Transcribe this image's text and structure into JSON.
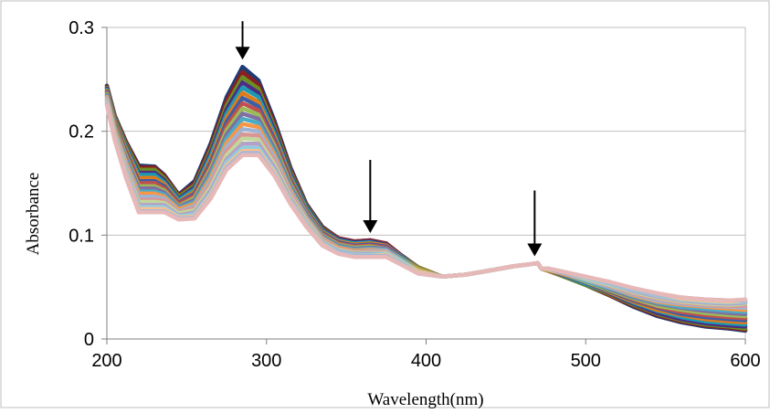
{
  "chart_data": {
    "type": "line",
    "xlabel": "Wavelength(nm)",
    "ylabel": "Absorbance",
    "xlim": [
      200,
      600
    ],
    "ylim": [
      0,
      0.3
    ],
    "x_ticks": [
      "200",
      "300",
      "400",
      "500",
      "600"
    ],
    "y_ticks": [
      "0",
      "0.1",
      "0.2",
      "0.3"
    ],
    "grid": "horizontal",
    "legend": "none",
    "arrows_at_wavelengths": [
      285,
      365,
      468
    ],
    "series_colors": [
      "#1f3b73",
      "#8b1e1e",
      "#6b8e23",
      "#4b2e83",
      "#1a9bb3",
      "#e07b1a",
      "#3c5fa8",
      "#c0504d",
      "#9bbb59",
      "#7f6fa3",
      "#4bacc6",
      "#f79646",
      "#9fb3d4",
      "#d99694",
      "#c3d69b",
      "#b3a2c7",
      "#93cddd",
      "#fac08f",
      "#a5b6d8",
      "#e6b9b8"
    ],
    "x": [
      200,
      205,
      212,
      220,
      230,
      236,
      245,
      255,
      265,
      275,
      285,
      295,
      305,
      315,
      325,
      335,
      345,
      355,
      365,
      375,
      385,
      395,
      410,
      425,
      440,
      455,
      465,
      470,
      472,
      476,
      485,
      500,
      515,
      530,
      545,
      560,
      575,
      590,
      600
    ],
    "series": [
      {
        "values": [
          0.244,
          0.215,
          0.19,
          0.167,
          0.166,
          0.158,
          0.139,
          0.152,
          0.188,
          0.233,
          0.262,
          0.249,
          0.21,
          0.165,
          0.13,
          0.108,
          0.097,
          0.094,
          0.095,
          0.092,
          0.08,
          0.069,
          0.06,
          0.062,
          0.066,
          0.07,
          0.072,
          0.073,
          0.068,
          0.066,
          0.061,
          0.052,
          0.042,
          0.031,
          0.022,
          0.016,
          0.012,
          0.01,
          0.008
        ]
      },
      {
        "values": [
          0.243,
          0.214,
          0.189,
          0.165,
          0.165,
          0.157,
          0.138,
          0.15,
          0.185,
          0.229,
          0.257,
          0.245,
          0.207,
          0.163,
          0.129,
          0.107,
          0.097,
          0.094,
          0.095,
          0.092,
          0.08,
          0.069,
          0.06,
          0.062,
          0.066,
          0.07,
          0.072,
          0.073,
          0.068,
          0.066,
          0.061,
          0.052,
          0.042,
          0.032,
          0.023,
          0.017,
          0.013,
          0.011,
          0.009
        ]
      },
      {
        "values": [
          0.242,
          0.213,
          0.187,
          0.163,
          0.163,
          0.155,
          0.137,
          0.148,
          0.182,
          0.225,
          0.252,
          0.241,
          0.204,
          0.161,
          0.128,
          0.106,
          0.096,
          0.093,
          0.094,
          0.091,
          0.079,
          0.069,
          0.06,
          0.062,
          0.066,
          0.07,
          0.072,
          0.073,
          0.068,
          0.066,
          0.061,
          0.052,
          0.043,
          0.033,
          0.024,
          0.018,
          0.014,
          0.012,
          0.01
        ]
      },
      {
        "values": [
          0.241,
          0.211,
          0.185,
          0.16,
          0.16,
          0.153,
          0.135,
          0.146,
          0.179,
          0.221,
          0.247,
          0.237,
          0.201,
          0.159,
          0.127,
          0.105,
          0.096,
          0.093,
          0.094,
          0.091,
          0.079,
          0.068,
          0.06,
          0.062,
          0.066,
          0.07,
          0.072,
          0.073,
          0.068,
          0.066,
          0.062,
          0.053,
          0.044,
          0.034,
          0.025,
          0.019,
          0.015,
          0.013,
          0.012
        ]
      },
      {
        "values": [
          0.24,
          0.21,
          0.184,
          0.158,
          0.158,
          0.151,
          0.134,
          0.144,
          0.176,
          0.217,
          0.242,
          0.233,
          0.198,
          0.157,
          0.126,
          0.104,
          0.095,
          0.092,
          0.093,
          0.09,
          0.079,
          0.068,
          0.06,
          0.062,
          0.066,
          0.07,
          0.072,
          0.073,
          0.068,
          0.066,
          0.062,
          0.053,
          0.045,
          0.035,
          0.027,
          0.021,
          0.017,
          0.015,
          0.014
        ]
      },
      {
        "values": [
          0.239,
          0.209,
          0.182,
          0.155,
          0.155,
          0.149,
          0.132,
          0.142,
          0.173,
          0.213,
          0.237,
          0.228,
          0.195,
          0.155,
          0.124,
          0.103,
          0.094,
          0.091,
          0.092,
          0.09,
          0.078,
          0.068,
          0.06,
          0.062,
          0.066,
          0.07,
          0.072,
          0.073,
          0.068,
          0.066,
          0.062,
          0.054,
          0.045,
          0.036,
          0.028,
          0.023,
          0.019,
          0.017,
          0.016
        ]
      },
      {
        "values": [
          0.238,
          0.207,
          0.18,
          0.152,
          0.152,
          0.147,
          0.131,
          0.14,
          0.17,
          0.209,
          0.232,
          0.224,
          0.192,
          0.153,
          0.123,
          0.102,
          0.093,
          0.09,
          0.091,
          0.089,
          0.078,
          0.067,
          0.06,
          0.062,
          0.066,
          0.07,
          0.072,
          0.073,
          0.068,
          0.067,
          0.062,
          0.054,
          0.046,
          0.037,
          0.03,
          0.024,
          0.021,
          0.019,
          0.018
        ]
      },
      {
        "values": [
          0.237,
          0.206,
          0.178,
          0.15,
          0.15,
          0.145,
          0.13,
          0.138,
          0.167,
          0.205,
          0.227,
          0.22,
          0.189,
          0.151,
          0.122,
          0.101,
          0.092,
          0.089,
          0.09,
          0.088,
          0.077,
          0.067,
          0.06,
          0.062,
          0.066,
          0.07,
          0.072,
          0.073,
          0.068,
          0.067,
          0.063,
          0.055,
          0.047,
          0.038,
          0.031,
          0.026,
          0.023,
          0.021,
          0.02
        ]
      },
      {
        "values": [
          0.236,
          0.205,
          0.176,
          0.147,
          0.147,
          0.143,
          0.128,
          0.136,
          0.164,
          0.201,
          0.222,
          0.216,
          0.186,
          0.149,
          0.121,
          0.1,
          0.091,
          0.088,
          0.089,
          0.087,
          0.077,
          0.067,
          0.06,
          0.062,
          0.066,
          0.07,
          0.072,
          0.073,
          0.068,
          0.067,
          0.063,
          0.055,
          0.047,
          0.039,
          0.032,
          0.028,
          0.025,
          0.023,
          0.022
        ]
      },
      {
        "values": [
          0.235,
          0.203,
          0.174,
          0.145,
          0.145,
          0.141,
          0.127,
          0.134,
          0.161,
          0.197,
          0.217,
          0.212,
          0.183,
          0.147,
          0.12,
          0.099,
          0.09,
          0.087,
          0.088,
          0.087,
          0.076,
          0.066,
          0.06,
          0.062,
          0.066,
          0.07,
          0.072,
          0.073,
          0.068,
          0.067,
          0.063,
          0.056,
          0.048,
          0.04,
          0.034,
          0.03,
          0.027,
          0.025,
          0.024
        ]
      },
      {
        "values": [
          0.234,
          0.202,
          0.172,
          0.142,
          0.142,
          0.139,
          0.126,
          0.132,
          0.158,
          0.193,
          0.212,
          0.208,
          0.18,
          0.145,
          0.118,
          0.098,
          0.089,
          0.086,
          0.087,
          0.086,
          0.076,
          0.066,
          0.06,
          0.062,
          0.066,
          0.07,
          0.072,
          0.073,
          0.068,
          0.067,
          0.063,
          0.056,
          0.049,
          0.041,
          0.035,
          0.031,
          0.029,
          0.027,
          0.026
        ]
      },
      {
        "values": [
          0.233,
          0.201,
          0.17,
          0.14,
          0.14,
          0.137,
          0.125,
          0.13,
          0.155,
          0.189,
          0.207,
          0.204,
          0.177,
          0.143,
          0.117,
          0.097,
          0.088,
          0.085,
          0.086,
          0.085,
          0.075,
          0.066,
          0.06,
          0.062,
          0.066,
          0.07,
          0.072,
          0.073,
          0.068,
          0.067,
          0.063,
          0.057,
          0.05,
          0.042,
          0.036,
          0.033,
          0.031,
          0.029,
          0.028
        ]
      },
      {
        "values": [
          0.232,
          0.199,
          0.168,
          0.137,
          0.137,
          0.135,
          0.123,
          0.128,
          0.152,
          0.185,
          0.202,
          0.2,
          0.174,
          0.141,
          0.116,
          0.096,
          0.087,
          0.084,
          0.085,
          0.085,
          0.075,
          0.065,
          0.06,
          0.062,
          0.066,
          0.07,
          0.072,
          0.073,
          0.068,
          0.067,
          0.064,
          0.057,
          0.05,
          0.043,
          0.037,
          0.034,
          0.032,
          0.031,
          0.03
        ]
      },
      {
        "values": [
          0.231,
          0.198,
          0.166,
          0.134,
          0.134,
          0.133,
          0.122,
          0.126,
          0.149,
          0.181,
          0.197,
          0.196,
          0.171,
          0.139,
          0.115,
          0.095,
          0.087,
          0.084,
          0.084,
          0.084,
          0.074,
          0.065,
          0.06,
          0.062,
          0.066,
          0.07,
          0.072,
          0.073,
          0.068,
          0.067,
          0.064,
          0.058,
          0.051,
          0.044,
          0.039,
          0.035,
          0.033,
          0.032,
          0.032
        ]
      },
      {
        "values": [
          0.23,
          0.197,
          0.164,
          0.132,
          0.132,
          0.131,
          0.121,
          0.124,
          0.146,
          0.177,
          0.193,
          0.192,
          0.168,
          0.137,
          0.114,
          0.094,
          0.086,
          0.083,
          0.083,
          0.083,
          0.074,
          0.065,
          0.06,
          0.062,
          0.066,
          0.07,
          0.072,
          0.073,
          0.068,
          0.067,
          0.064,
          0.058,
          0.052,
          0.045,
          0.04,
          0.036,
          0.034,
          0.033,
          0.034
        ]
      },
      {
        "values": [
          0.229,
          0.195,
          0.162,
          0.129,
          0.129,
          0.129,
          0.119,
          0.122,
          0.143,
          0.173,
          0.188,
          0.188,
          0.165,
          0.135,
          0.112,
          0.093,
          0.085,
          0.082,
          0.082,
          0.082,
          0.073,
          0.064,
          0.06,
          0.062,
          0.066,
          0.07,
          0.072,
          0.073,
          0.068,
          0.068,
          0.064,
          0.059,
          0.053,
          0.046,
          0.041,
          0.037,
          0.035,
          0.034,
          0.035
        ]
      },
      {
        "values": [
          0.228,
          0.194,
          0.16,
          0.127,
          0.127,
          0.127,
          0.118,
          0.12,
          0.14,
          0.17,
          0.184,
          0.184,
          0.162,
          0.133,
          0.111,
          0.092,
          0.084,
          0.081,
          0.081,
          0.082,
          0.073,
          0.064,
          0.06,
          0.062,
          0.066,
          0.07,
          0.072,
          0.073,
          0.068,
          0.068,
          0.065,
          0.059,
          0.053,
          0.047,
          0.042,
          0.038,
          0.036,
          0.035,
          0.036
        ]
      },
      {
        "values": [
          0.227,
          0.193,
          0.158,
          0.125,
          0.125,
          0.125,
          0.117,
          0.118,
          0.138,
          0.167,
          0.181,
          0.181,
          0.16,
          0.132,
          0.11,
          0.091,
          0.083,
          0.08,
          0.08,
          0.081,
          0.072,
          0.064,
          0.06,
          0.062,
          0.066,
          0.07,
          0.072,
          0.073,
          0.068,
          0.068,
          0.065,
          0.06,
          0.054,
          0.048,
          0.043,
          0.039,
          0.037,
          0.036,
          0.037
        ]
      },
      {
        "values": [
          0.226,
          0.192,
          0.156,
          0.123,
          0.123,
          0.123,
          0.116,
          0.117,
          0.136,
          0.165,
          0.179,
          0.179,
          0.158,
          0.131,
          0.109,
          0.09,
          0.083,
          0.08,
          0.08,
          0.08,
          0.072,
          0.063,
          0.06,
          0.062,
          0.066,
          0.07,
          0.072,
          0.073,
          0.068,
          0.068,
          0.065,
          0.06,
          0.054,
          0.048,
          0.043,
          0.04,
          0.038,
          0.037,
          0.037
        ]
      },
      {
        "values": [
          0.225,
          0.191,
          0.155,
          0.122,
          0.122,
          0.122,
          0.115,
          0.116,
          0.135,
          0.163,
          0.177,
          0.177,
          0.157,
          0.13,
          0.108,
          0.09,
          0.082,
          0.079,
          0.079,
          0.079,
          0.071,
          0.063,
          0.06,
          0.062,
          0.066,
          0.07,
          0.072,
          0.073,
          0.068,
          0.068,
          0.065,
          0.06,
          0.055,
          0.049,
          0.044,
          0.04,
          0.038,
          0.037,
          0.038
        ]
      }
    ]
  }
}
